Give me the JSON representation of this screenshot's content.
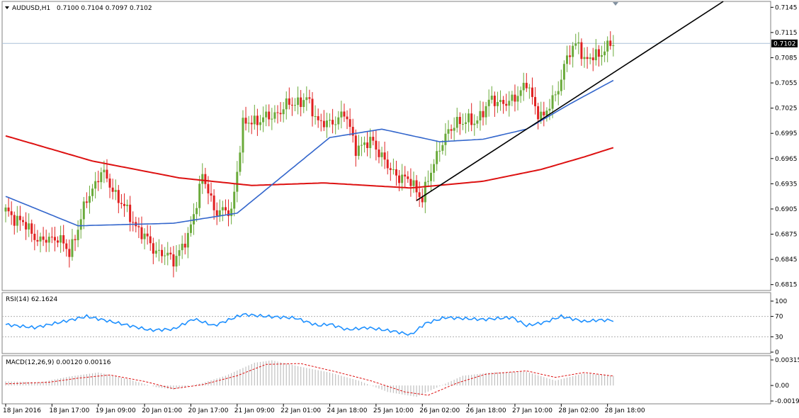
{
  "window": {
    "symbol_title": "AUDUSD,H1",
    "ohlc": "0.7100 0.7104 0.7097 0.7102"
  },
  "colors": {
    "bull": "#6aaa3a",
    "bear": "#e02020",
    "ma_fast": "#3366cc",
    "ma_slow": "#dd1111",
    "rsi": "#1e90ff",
    "macd_hist": "#c0c0c0",
    "macd_signal": "#dd1111",
    "trendline": "#000000",
    "grid_level": "#aac0d8"
  },
  "price_axis": {
    "ticks": [
      "0.7145",
      "0.7115",
      "0.7085",
      "0.7055",
      "0.7025",
      "0.6995",
      "0.6965",
      "0.6935",
      "0.6905",
      "0.6875",
      "0.6845",
      "0.6815"
    ],
    "current_price": "0.7102",
    "range": [
      0.6808,
      0.7152
    ]
  },
  "rsi_panel": {
    "label": "RSI(14) 62.1624",
    "ticks": [
      "100",
      "70",
      "30",
      "0"
    ],
    "levels": [
      70,
      30
    ]
  },
  "macd_panel": {
    "label": "MACD(12,26,9) 0.00120 0.00116",
    "ticks": [
      "0.00315",
      "0.00",
      "-0.00191"
    ]
  },
  "time_axis": {
    "labels": [
      "18 Jan 2016",
      "18 Jan 17:00",
      "19 Jan 09:00",
      "20 Jan 01:00",
      "20 Jan 17:00",
      "21 Jan 09:00",
      "22 Jan 01:00",
      "24 Jan 18:00",
      "25 Jan 10:00",
      "26 Jan 02:00",
      "26 Jan 18:00",
      "27 Jan 10:00",
      "28 Jan 02:00",
      "28 Jan 18:00"
    ]
  },
  "chart_data": {
    "type": "candlestick",
    "instrument": "AUDUSD",
    "timeframe": "H1",
    "anchors": [
      [
        0,
        0.6902
      ],
      [
        6,
        0.6888
      ],
      [
        12,
        0.6866
      ],
      [
        18,
        0.6872
      ],
      [
        22,
        0.6852
      ],
      [
        28,
        0.6915
      ],
      [
        33,
        0.695
      ],
      [
        40,
        0.6912
      ],
      [
        46,
        0.688
      ],
      [
        52,
        0.6855
      ],
      [
        58,
        0.6845
      ],
      [
        63,
        0.687
      ],
      [
        68,
        0.6945
      ],
      [
        72,
        0.6905
      ],
      [
        78,
        0.69
      ],
      [
        82,
        0.7005
      ],
      [
        86,
        0.701
      ],
      [
        92,
        0.7015
      ],
      [
        98,
        0.703
      ],
      [
        104,
        0.7035
      ],
      [
        108,
        0.701
      ],
      [
        112,
        0.7005
      ],
      [
        117,
        0.702
      ],
      [
        121,
        0.6978
      ],
      [
        127,
        0.6985
      ],
      [
        133,
        0.695
      ],
      [
        140,
        0.6937
      ],
      [
        144,
        0.6918
      ],
      [
        150,
        0.698
      ],
      [
        156,
        0.701
      ],
      [
        162,
        0.7008
      ],
      [
        168,
        0.7035
      ],
      [
        174,
        0.703
      ],
      [
        180,
        0.7055
      ],
      [
        183,
        0.7025
      ],
      [
        186,
        0.7015
      ],
      [
        190,
        0.704
      ],
      [
        194,
        0.7085
      ],
      [
        198,
        0.7105
      ],
      [
        200,
        0.708
      ],
      [
        205,
        0.709
      ],
      [
        210,
        0.7102
      ]
    ],
    "ma_fast_anchors": [
      [
        0,
        0.692
      ],
      [
        25,
        0.6885
      ],
      [
        58,
        0.6888
      ],
      [
        80,
        0.69
      ],
      [
        96,
        0.6945
      ],
      [
        112,
        0.699
      ],
      [
        130,
        0.7
      ],
      [
        150,
        0.6985
      ],
      [
        165,
        0.6988
      ],
      [
        180,
        0.7
      ],
      [
        195,
        0.703
      ],
      [
        210,
        0.7058
      ]
    ],
    "ma_slow_anchors": [
      [
        0,
        0.6992
      ],
      [
        30,
        0.6962
      ],
      [
        60,
        0.6942
      ],
      [
        85,
        0.6933
      ],
      [
        110,
        0.6936
      ],
      [
        140,
        0.693
      ],
      [
        165,
        0.6938
      ],
      [
        185,
        0.6952
      ],
      [
        200,
        0.6967
      ],
      [
        210,
        0.6978
      ]
    ],
    "trendline": [
      [
        142,
        0.6915
      ],
      [
        248,
        0.7152
      ]
    ],
    "rsi_anchors": [
      [
        0,
        54
      ],
      [
        10,
        48
      ],
      [
        20,
        60
      ],
      [
        28,
        70
      ],
      [
        38,
        58
      ],
      [
        50,
        43
      ],
      [
        58,
        45
      ],
      [
        65,
        65
      ],
      [
        72,
        52
      ],
      [
        82,
        74
      ],
      [
        90,
        70
      ],
      [
        100,
        67
      ],
      [
        108,
        52
      ],
      [
        112,
        55
      ],
      [
        118,
        44
      ],
      [
        125,
        48
      ],
      [
        135,
        40
      ],
      [
        140,
        34
      ],
      [
        145,
        56
      ],
      [
        152,
        68
      ],
      [
        158,
        66
      ],
      [
        165,
        64
      ],
      [
        175,
        68
      ],
      [
        180,
        52
      ],
      [
        186,
        58
      ],
      [
        192,
        70
      ],
      [
        200,
        60
      ],
      [
        205,
        63
      ],
      [
        210,
        62.16
      ]
    ],
    "macd_anchors": [
      [
        0,
        0.0005
      ],
      [
        12,
        0.0004
      ],
      [
        22,
        0.0011
      ],
      [
        32,
        0.0016
      ],
      [
        42,
        0.0008
      ],
      [
        52,
        -0.0002
      ],
      [
        58,
        -0.0005
      ],
      [
        68,
        0.0003
      ],
      [
        76,
        0.0012
      ],
      [
        86,
        0.0028
      ],
      [
        92,
        0.0031
      ],
      [
        102,
        0.0023
      ],
      [
        112,
        0.0016
      ],
      [
        122,
        0.0006
      ],
      [
        132,
        -0.0008
      ],
      [
        142,
        -0.0014
      ],
      [
        150,
        -0.0001
      ],
      [
        158,
        0.0012
      ],
      [
        168,
        0.0016
      ],
      [
        180,
        0.0017
      ],
      [
        190,
        0.0006
      ],
      [
        200,
        0.0015
      ],
      [
        210,
        0.0012
      ]
    ],
    "macd_signal_anchors": [
      [
        0,
        0.0002
      ],
      [
        15,
        0.0004
      ],
      [
        25,
        0.0009
      ],
      [
        36,
        0.0013
      ],
      [
        48,
        0.0005
      ],
      [
        58,
        -0.0004
      ],
      [
        68,
        0.0001
      ],
      [
        80,
        0.0012
      ],
      [
        90,
        0.0026
      ],
      [
        102,
        0.0027
      ],
      [
        114,
        0.0017
      ],
      [
        126,
        0.0006
      ],
      [
        138,
        -0.0008
      ],
      [
        146,
        -0.0012
      ],
      [
        156,
        0.0003
      ],
      [
        166,
        0.0014
      ],
      [
        180,
        0.0018
      ],
      [
        190,
        0.001
      ],
      [
        200,
        0.0016
      ],
      [
        210,
        0.00116
      ]
    ],
    "macd_range": [
      -0.00191,
      0.00315
    ],
    "rsi_range": [
      0,
      100
    ]
  }
}
